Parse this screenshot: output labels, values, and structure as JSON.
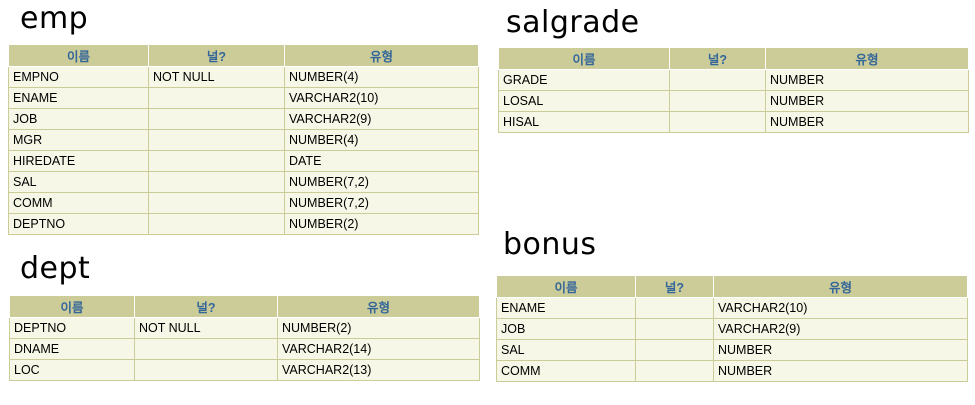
{
  "tables": {
    "emp": {
      "title": "emp",
      "headers": [
        "이름",
        "널?",
        "유형"
      ],
      "rows": [
        [
          "EMPNO",
          "NOT NULL",
          "NUMBER(4)"
        ],
        [
          "ENAME",
          "",
          "VARCHAR2(10)"
        ],
        [
          "JOB",
          "",
          "VARCHAR2(9)"
        ],
        [
          "MGR",
          "",
          "NUMBER(4)"
        ],
        [
          "HIREDATE",
          "",
          "DATE"
        ],
        [
          "SAL",
          "",
          "NUMBER(7,2)"
        ],
        [
          "COMM",
          "",
          "NUMBER(7,2)"
        ],
        [
          "DEPTNO",
          "",
          "NUMBER(2)"
        ]
      ]
    },
    "dept": {
      "title": "dept",
      "headers": [
        "이름",
        "널?",
        "유형"
      ],
      "rows": [
        [
          "DEPTNO",
          "NOT NULL",
          "NUMBER(2)"
        ],
        [
          "DNAME",
          "",
          "VARCHAR2(14)"
        ],
        [
          "LOC",
          "",
          "VARCHAR2(13)"
        ]
      ]
    },
    "salgrade": {
      "title": "salgrade",
      "headers": [
        "이름",
        "널?",
        "유형"
      ],
      "rows": [
        [
          "GRADE",
          "",
          "NUMBER"
        ],
        [
          "LOSAL",
          "",
          "NUMBER"
        ],
        [
          "HISAL",
          "",
          "NUMBER"
        ]
      ]
    },
    "bonus": {
      "title": "bonus",
      "headers": [
        "이름",
        "널?",
        "유형"
      ],
      "rows": [
        [
          "ENAME",
          "",
          "VARCHAR2(10)"
        ],
        [
          "JOB",
          "",
          "VARCHAR2(9)"
        ],
        [
          "SAL",
          "",
          "NUMBER"
        ],
        [
          "COMM",
          "",
          "NUMBER"
        ]
      ]
    }
  },
  "colors": {
    "header_bg": "#cccc99",
    "header_text": "#336699",
    "row_bg": "#f7f7e7"
  }
}
